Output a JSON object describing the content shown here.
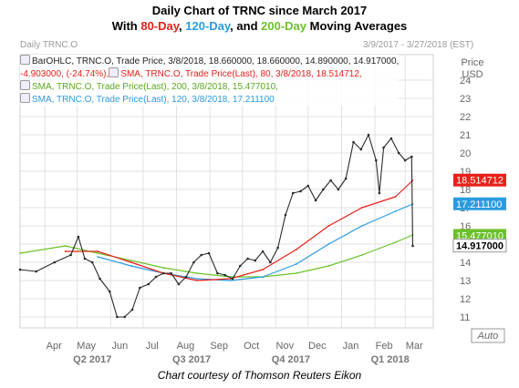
{
  "title_line1": "Daily Chart of TRNC since March 2017",
  "title_line2": {
    "prefix": "With ",
    "ma80": "80-Day",
    "sep1": ", ",
    "ma120": "120-Day",
    "sep2": ", and ",
    "ma200": "200-Day",
    "suffix": " Moving Averages"
  },
  "header_left": "Daily TRNC.O",
  "header_right": "3/9/2017 - 3/27/2018 (EST)",
  "axis_label_price": "Price",
  "axis_label_unit": "USD",
  "auto_label": "Auto",
  "legend": {
    "line1": "BarOHLC, TRNC.O, Trade Price, 3/8/2018, 18.660000, 18.660000, 14.890000, 14.917000,",
    "line2a": "-4.903000, (-24.74%),",
    "line2b": "SMA, TRNC.O, Trade Price(Last), 80, 3/8/2018, 18.514712,",
    "line3": "SMA, TRNC.O, Trade Price(Last), 200, 3/8/2018, 15.477010,",
    "line4": "SMA, TRNC.O, Trade Price(Last), 120, 3/8/2018, 17.211100"
  },
  "caption": "Chart courtesy of Thomson Reuters Eikon",
  "colors": {
    "price": "#2a2a2a",
    "sma80": "#e8201a",
    "sma120": "#2a9be0",
    "sma200": "#6cc12a",
    "grid": "#e2e2e2",
    "axis_text": "#666666",
    "quarter_text": "#777777"
  },
  "chart_data": {
    "type": "line",
    "title": "Daily Chart of TRNC since March 2017",
    "ylim": [
      10.4,
      25.4
    ],
    "y_ticks": [
      11,
      12,
      13,
      14,
      15,
      16,
      17,
      18,
      19,
      20,
      21,
      22,
      23,
      24
    ],
    "x_months": [
      "Apr",
      "May",
      "Jun",
      "Jul",
      "Aug",
      "Sep",
      "Oct",
      "Nov",
      "Dec",
      "Jan",
      "Feb",
      "Mar"
    ],
    "x_quarters": [
      "Q2 2017",
      "Q3 2017",
      "Q4 2017",
      "Q1 2018"
    ],
    "last_values": {
      "sma80": "18.514712",
      "sma120": "17.211100",
      "sma200": "15.477010",
      "price": "14.917000"
    },
    "series": [
      {
        "name": "BarOHLC, TRNC.O",
        "x": [
          "2017-03-09",
          "2017-03-24",
          "2017-04-10",
          "2017-04-25",
          "2017-05-02",
          "2017-05-08",
          "2017-05-15",
          "2017-05-22",
          "2017-05-31",
          "2017-06-07",
          "2017-06-14",
          "2017-06-21",
          "2017-06-28",
          "2017-07-06",
          "2017-07-13",
          "2017-07-20",
          "2017-07-27",
          "2017-08-03",
          "2017-08-10",
          "2017-08-17",
          "2017-08-24",
          "2017-08-31",
          "2017-09-08",
          "2017-09-15",
          "2017-09-22",
          "2017-09-29",
          "2017-10-06",
          "2017-10-13",
          "2017-10-20",
          "2017-10-27",
          "2017-11-03",
          "2017-11-10",
          "2017-11-17",
          "2017-11-24",
          "2017-12-01",
          "2017-12-08",
          "2017-12-15",
          "2017-12-22",
          "2017-12-29",
          "2018-01-05",
          "2018-01-12",
          "2018-01-19",
          "2018-01-26",
          "2018-02-02",
          "2018-02-05",
          "2018-02-09",
          "2018-02-16",
          "2018-02-23",
          "2018-03-01",
          "2018-03-07",
          "2018-03-08"
        ],
        "values": [
          13.6,
          13.5,
          14.0,
          14.4,
          15.4,
          14.2,
          14.0,
          13.1,
          12.4,
          11.0,
          11.0,
          11.4,
          12.6,
          12.8,
          13.2,
          13.4,
          13.4,
          12.8,
          13.2,
          14.0,
          14.4,
          14.5,
          13.4,
          13.3,
          13.1,
          13.8,
          14.2,
          14.1,
          14.6,
          14.0,
          14.8,
          16.6,
          17.8,
          17.9,
          18.2,
          17.4,
          18.0,
          18.5,
          18.0,
          18.6,
          20.6,
          20.2,
          21.0,
          19.6,
          17.8,
          20.3,
          20.8,
          20.0,
          19.6,
          19.8,
          14.9
        ]
      },
      {
        "name": "SMA 80",
        "x": [
          "2017-04-20",
          "2017-05-20",
          "2017-06-20",
          "2017-07-20",
          "2017-08-20",
          "2017-09-20",
          "2017-10-20",
          "2017-11-20",
          "2017-12-20",
          "2018-01-20",
          "2018-02-20",
          "2018-03-08"
        ],
        "values": [
          14.6,
          14.6,
          14.0,
          13.4,
          13.0,
          13.1,
          13.6,
          14.7,
          16.0,
          17.0,
          17.6,
          18.5
        ]
      },
      {
        "name": "SMA 120",
        "x": [
          "2017-05-20",
          "2017-06-20",
          "2017-07-20",
          "2017-08-20",
          "2017-09-20",
          "2017-10-20",
          "2017-11-20",
          "2017-12-20",
          "2018-01-20",
          "2018-02-20",
          "2018-03-08"
        ],
        "values": [
          14.3,
          13.8,
          13.4,
          13.1,
          13.0,
          13.2,
          13.9,
          15.0,
          16.0,
          16.8,
          17.2
        ]
      },
      {
        "name": "SMA 200",
        "x": [
          "2017-03-09",
          "2017-04-20",
          "2017-05-20",
          "2017-06-20",
          "2017-07-20",
          "2017-08-20",
          "2017-09-20",
          "2017-10-20",
          "2017-11-20",
          "2017-12-20",
          "2018-01-20",
          "2018-02-20",
          "2018-03-08"
        ],
        "values": [
          14.5,
          14.9,
          14.5,
          14.1,
          13.7,
          13.4,
          13.2,
          13.2,
          13.4,
          13.8,
          14.4,
          15.1,
          15.5
        ]
      }
    ]
  }
}
